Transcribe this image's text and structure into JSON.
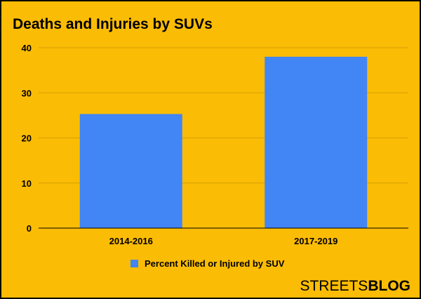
{
  "chart_data": {
    "type": "bar",
    "title": "Deaths and Injuries by SUVs",
    "categories": [
      "2014-2016",
      "2017-2019"
    ],
    "series": [
      {
        "name": "Percent Killed or Injured by SUV",
        "values": [
          25.3,
          38.0
        ],
        "color": "#4285f4"
      }
    ],
    "xlabel": "",
    "ylabel": "",
    "ylim": [
      0,
      40
    ],
    "yticks": [
      0,
      10,
      20,
      30,
      40
    ],
    "grid": true,
    "legend_position": "bottom",
    "background_color": "#fbbc05"
  },
  "branding": {
    "logo_part1": "STREETS",
    "logo_part2": "BLOG"
  }
}
